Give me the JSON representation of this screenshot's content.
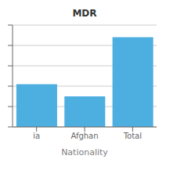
{
  "chart_data": {
    "type": "bar",
    "title": "MDR",
    "xlabel": "Nationality",
    "categories": [
      "ia",
      "Afghan",
      "Total"
    ],
    "values": [
      42,
      30,
      88
    ],
    "color": "#4daee0",
    "ylim": [
      0,
      100
    ],
    "yticks": [
      0,
      20,
      40,
      60,
      80,
      100
    ],
    "grid": true,
    "tick_labels": "x"
  }
}
